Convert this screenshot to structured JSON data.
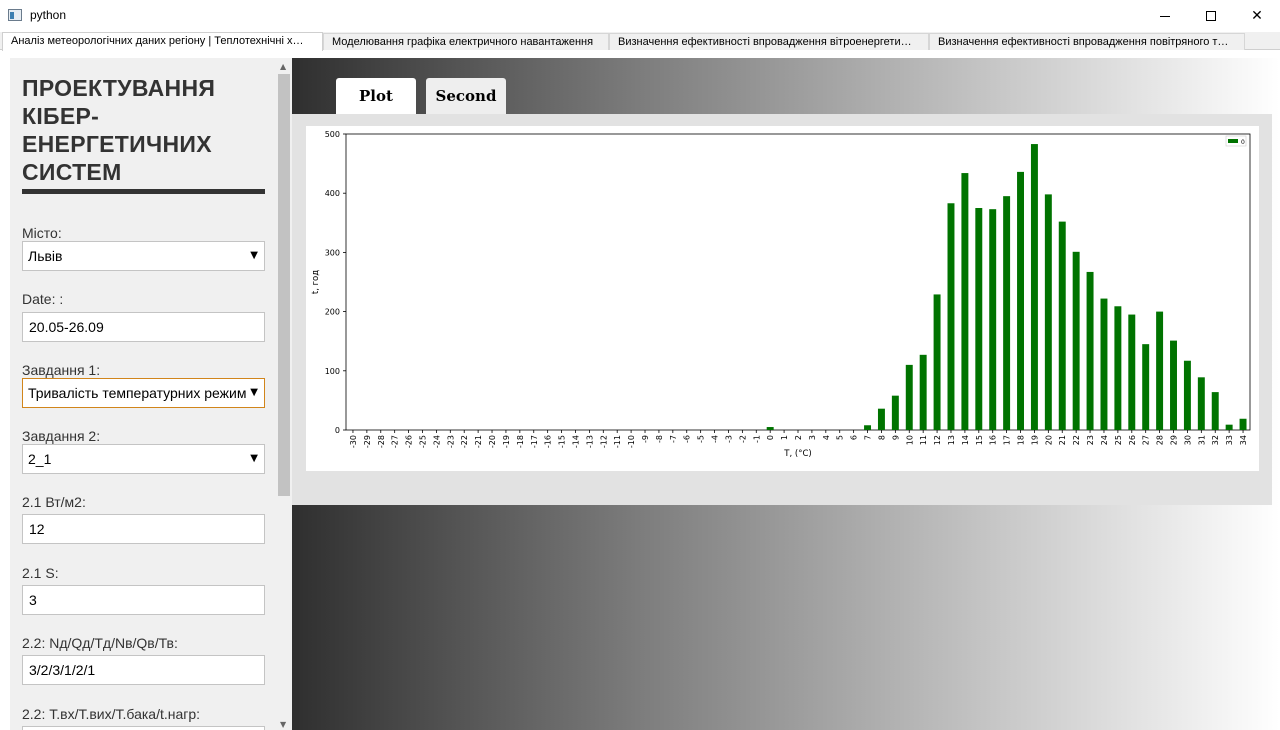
{
  "window": {
    "title": "python"
  },
  "tabs": [
    {
      "label": "Аналіз метеорологічних даних регіону | Теплотехнічні х…",
      "active": true
    },
    {
      "label": "Моделювання графіка електричного навантаження",
      "active": false
    },
    {
      "label": "Визначення ефективності впровадження вітроенергети…",
      "active": false
    },
    {
      "label": "Визначення ефективності впровадження повітряного т…",
      "active": false
    }
  ],
  "sidebar": {
    "title": "ПРОЕКТУВАННЯ КІБЕР-ЕНЕРГЕТИЧНИХ СИСТЕМ",
    "title_lines": [
      "ПРОЕКТУВАННЯ",
      "КІБЕР-",
      "ЕНЕРГЕТИЧНИХ",
      "СИСТЕМ"
    ],
    "fields": [
      {
        "label": "Місто:",
        "type": "select",
        "value": "Львів"
      },
      {
        "label": "Date: :",
        "type": "input",
        "value": "20.05-26.09"
      },
      {
        "label": "Завдання 1:",
        "type": "select",
        "value": "Тривалість температурних режим",
        "focused": true
      },
      {
        "label": "Завдання 2:",
        "type": "select",
        "value": "2_1"
      },
      {
        "label": "2.1 Вт/м2:",
        "type": "input",
        "value": "12"
      },
      {
        "label": "2.1 S:",
        "type": "input",
        "value": "3"
      },
      {
        "label": "2.2: Nд/Qд/Тд/Nв/Qв/Тв:",
        "type": "input",
        "value": "3/2/3/1/2/1"
      },
      {
        "label": "2.2: Т.вх/Т.вих/Т.бака/t.нагр:",
        "type": "input",
        "value": ""
      }
    ]
  },
  "plot_tabs": [
    {
      "label": "Plot",
      "active": true
    },
    {
      "label": "Second",
      "active": false
    }
  ],
  "colors": {
    "bar": "#007300",
    "accent_focus": "#d1851b"
  },
  "chart_data": {
    "type": "bar",
    "xlabel": "T, (°C)",
    "ylabel": "t, год",
    "legend": "0",
    "legend_position": "top-right",
    "ylim": [
      0,
      500
    ],
    "yticks": [
      0,
      100,
      200,
      300,
      400,
      500
    ],
    "grid": false,
    "categories": [
      "-30",
      "-29",
      "-28",
      "-27",
      "-26",
      "-25",
      "-24",
      "-23",
      "-22",
      "-21",
      "-20",
      "-19",
      "-18",
      "-17",
      "-16",
      "-15",
      "-14",
      "-13",
      "-12",
      "-11",
      "-10",
      "-9",
      "-8",
      "-7",
      "-6",
      "-5",
      "-4",
      "-3",
      "-2",
      "-1",
      "0",
      "1",
      "2",
      "3",
      "4",
      "5",
      "6",
      "7",
      "8",
      "9",
      "10",
      "11",
      "12",
      "13",
      "14",
      "15",
      "16",
      "17",
      "18",
      "19",
      "20",
      "21",
      "22",
      "23",
      "24",
      "25",
      "26",
      "27",
      "28",
      "29",
      "30",
      "31",
      "32",
      "33",
      "34"
    ],
    "values": [
      0,
      0,
      0,
      0,
      0,
      0,
      0,
      0,
      0,
      0,
      0,
      0,
      0,
      0,
      0,
      0,
      0,
      0,
      0,
      0,
      0,
      0,
      0,
      0,
      0,
      0,
      0,
      0,
      0,
      0,
      5,
      0,
      0,
      0,
      0,
      0,
      0,
      8,
      36,
      58,
      110,
      127,
      229,
      383,
      434,
      375,
      373,
      395,
      436,
      483,
      398,
      352,
      301,
      267,
      222,
      209,
      195,
      145,
      200,
      151,
      117,
      89,
      64,
      9,
      19
    ]
  }
}
